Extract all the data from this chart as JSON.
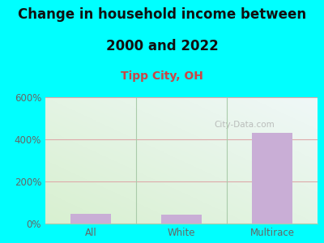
{
  "title_line1": "Change in household income between",
  "title_line2": "2000 and 2022",
  "subtitle": "Tipp City, OH",
  "categories": [
    "All",
    "White",
    "Multirace"
  ],
  "values": [
    48,
    43,
    430
  ],
  "bar_color": "#c9aed6",
  "figure_bg": "#00ffff",
  "plot_bg_bottom_left": "#d8f0d0",
  "plot_bg_top_right": "#f0f8f8",
  "title_fontsize": 12,
  "subtitle_fontsize": 10,
  "title_color": "#111111",
  "subtitle_color": "#cc4444",
  "tick_color": "#666666",
  "grid_color": "#ddaaaa",
  "divider_color": "#aaccaa",
  "ylim": [
    0,
    600
  ],
  "yticks": [
    0,
    200,
    400,
    600
  ],
  "watermark": "City-Data.com"
}
